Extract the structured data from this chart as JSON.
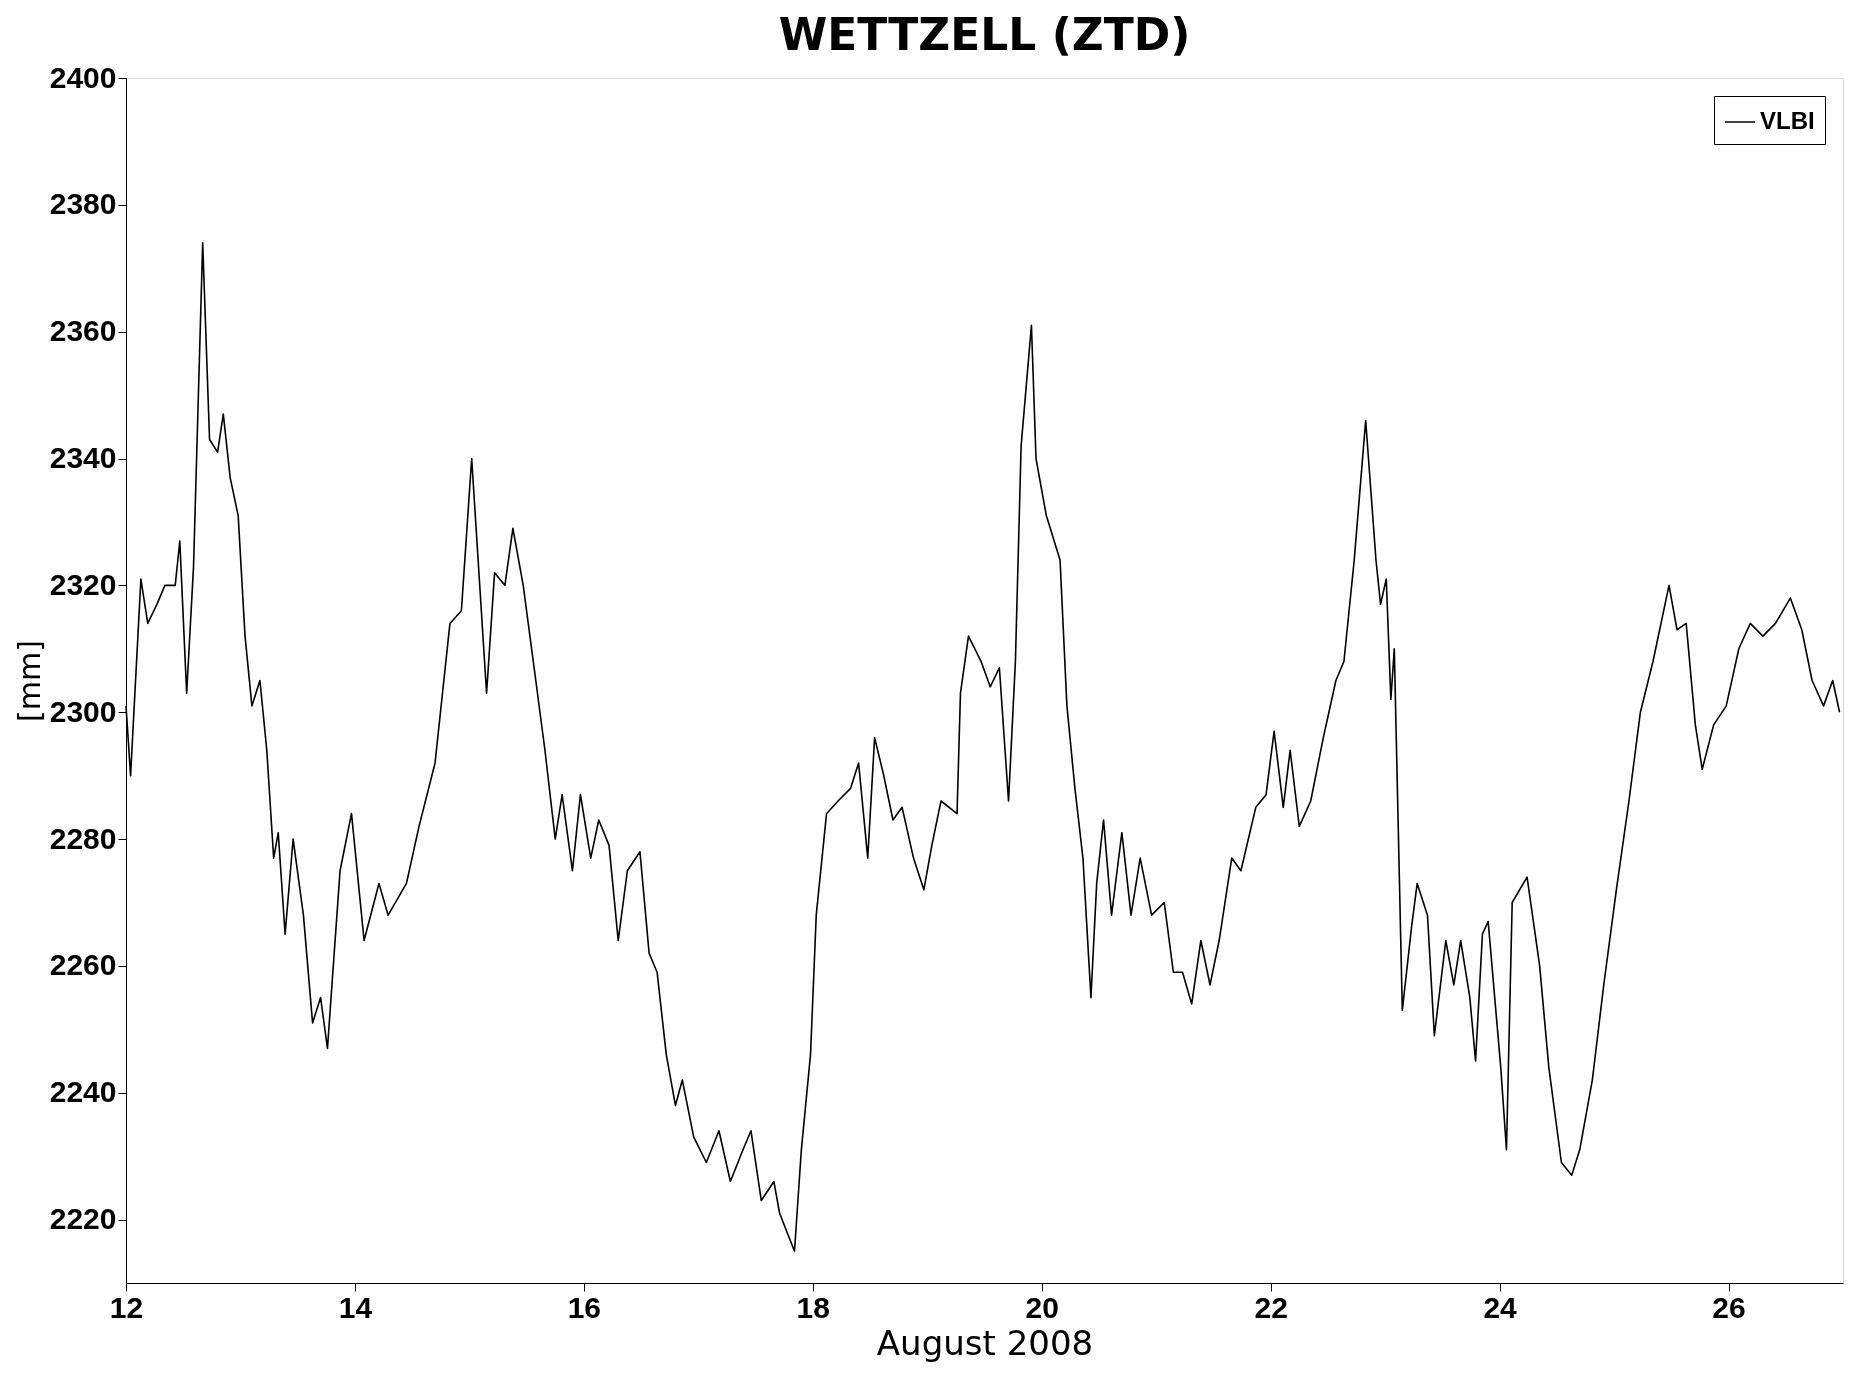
{
  "chart_data": {
    "type": "line",
    "title": "WETTZELL (ZTD)",
    "xlabel": "August 2008",
    "ylabel": "[mm]",
    "x": [
      12.0,
      12.04,
      12.13,
      12.19,
      12.27,
      12.34,
      12.43,
      12.47,
      12.53,
      12.59,
      12.67,
      12.73,
      12.8,
      12.85,
      12.91,
      12.98,
      13.04,
      13.1,
      13.17,
      13.23,
      13.29,
      13.33,
      13.39,
      13.46,
      13.55,
      13.63,
      13.7,
      13.76,
      13.87,
      13.97,
      14.08,
      14.21,
      14.29,
      14.45,
      14.56,
      14.7,
      14.83,
      14.93,
      15.02,
      15.15,
      15.22,
      15.31,
      15.38,
      15.47,
      15.58,
      15.66,
      15.75,
      15.81,
      15.9,
      15.97,
      16.06,
      16.13,
      16.22,
      16.3,
      16.38,
      16.49,
      16.57,
      16.64,
      16.72,
      16.8,
      16.86,
      16.96,
      17.07,
      17.18,
      17.28,
      17.39,
      17.46,
      17.55,
      17.66,
      17.71,
      17.84,
      17.9,
      17.98,
      18.03,
      18.12,
      18.22,
      18.33,
      18.4,
      18.48,
      18.54,
      18.62,
      18.7,
      18.78,
      18.88,
      18.97,
      19.04,
      19.12,
      19.26,
      19.29,
      19.36,
      19.47,
      19.55,
      19.63,
      19.71,
      19.77,
      19.82,
      19.91,
      19.95,
      20.04,
      20.16,
      20.22,
      20.29,
      20.36,
      20.43,
      20.48,
      20.54,
      20.61,
      20.7,
      20.78,
      20.86,
      20.96,
      21.07,
      21.15,
      21.23,
      21.31,
      21.39,
      21.47,
      21.55,
      21.66,
      21.74,
      21.87,
      21.96,
      22.03,
      22.11,
      22.17,
      22.25,
      22.35,
      22.46,
      22.57,
      22.64,
      22.73,
      22.83,
      22.92,
      22.96,
      23.01,
      23.05,
      23.08,
      23.15,
      23.23,
      23.28,
      23.37,
      23.43,
      23.53,
      23.6,
      23.66,
      23.74,
      23.79,
      23.85,
      23.9,
      24.01,
      24.06,
      24.11,
      24.24,
      24.35,
      24.43,
      24.54,
      24.63,
      24.7,
      24.81,
      24.91,
      25.02,
      25.13,
      25.23,
      25.34,
      25.48,
      25.55,
      25.63,
      25.71,
      25.77,
      25.87,
      25.98,
      26.09,
      26.19,
      26.3,
      26.41,
      26.54,
      26.64,
      26.73,
      26.83,
      26.91,
      26.97
    ],
    "series": [
      {
        "name": "VLBI",
        "color": "#000000",
        "values": [
          2301,
          2290,
          2321,
          2314,
          2317,
          2320,
          2320,
          2327,
          2303,
          2323,
          2374,
          2343,
          2341,
          2347,
          2337,
          2331,
          2312,
          2301,
          2305,
          2294,
          2277,
          2281,
          2265,
          2280,
          2268,
          2251,
          2255,
          2247,
          2275,
          2284,
          2264,
          2273,
          2268,
          2273,
          2282,
          2292,
          2314,
          2316,
          2340,
          2303,
          2322,
          2320,
          2329,
          2320,
          2305,
          2294,
          2280,
          2287,
          2275,
          2287,
          2277,
          2283,
          2279,
          2264,
          2275,
          2278,
          2262,
          2259,
          2246,
          2238,
          2242,
          2233,
          2229,
          2234,
          2226,
          2231,
          2234,
          2223,
          2226,
          2221,
          2215,
          2231,
          2246,
          2268,
          2284,
          2286,
          2288,
          2292,
          2277,
          2296,
          2290,
          2283,
          2285,
          2277,
          2272,
          2279,
          2286,
          2284,
          2303,
          2312,
          2308,
          2304,
          2307,
          2286,
          2308,
          2342,
          2361,
          2340,
          2331,
          2324,
          2301,
          2288,
          2277,
          2255,
          2273,
          2283,
          2268,
          2281,
          2268,
          2277,
          2268,
          2270,
          2259,
          2259,
          2254,
          2264,
          2257,
          2264,
          2277,
          2275,
          2285,
          2287,
          2297,
          2285,
          2294,
          2282,
          2286,
          2296,
          2305,
          2308,
          2324,
          2346,
          2324,
          2317,
          2321,
          2302,
          2310,
          2253,
          2266,
          2273,
          2268,
          2249,
          2264,
          2257,
          2264,
          2255,
          2245,
          2265,
          2267,
          2244,
          2231,
          2270,
          2274,
          2260,
          2244,
          2229,
          2227,
          2231,
          2242,
          2257,
          2272,
          2286,
          2300,
          2308,
          2320,
          2313,
          2314,
          2298,
          2291,
          2298,
          2301,
          2310,
          2314,
          2312,
          2314,
          2318,
          2313,
          2305,
          2301,
          2305,
          2300
        ]
      }
    ],
    "xlim": [
      12,
      27
    ],
    "xticks": [
      12,
      14,
      16,
      18,
      20,
      22,
      24,
      26
    ],
    "ylim": [
      2210,
      2400
    ],
    "yticks": [
      2220,
      2240,
      2260,
      2280,
      2300,
      2320,
      2340,
      2360,
      2380,
      2400
    ],
    "grid": false,
    "legend": "top right",
    "marker": "none",
    "line_style": "solid"
  }
}
